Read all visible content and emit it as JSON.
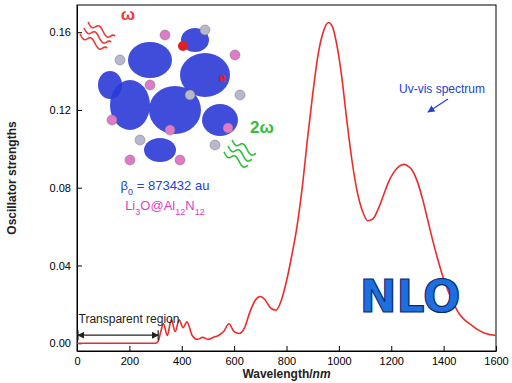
{
  "chart_data": {
    "type": "line",
    "x_label": "Wavelength/nm",
    "y_label": "Oscillator strengths",
    "x": [
      0,
      100,
      200,
      300,
      310,
      320,
      330,
      345,
      360,
      375,
      390,
      405,
      420,
      440,
      460,
      480,
      500,
      520,
      540,
      560,
      580,
      600,
      620,
      640,
      660,
      680,
      700,
      720,
      740,
      760,
      780,
      800,
      820,
      840,
      860,
      880,
      900,
      920,
      940,
      960,
      975,
      990,
      1010,
      1030,
      1050,
      1070,
      1090,
      1110,
      1130,
      1150,
      1170,
      1190,
      1210,
      1230,
      1250,
      1265,
      1280,
      1300,
      1320,
      1340,
      1360,
      1380,
      1400,
      1420,
      1440,
      1460,
      1480,
      1500,
      1530,
      1560,
      1600
    ],
    "values": [
      0,
      0,
      0,
      0,
      0.001,
      0.006,
      0.01,
      0.004,
      0.012,
      0.006,
      0.012,
      0.008,
      0.011,
      0.004,
      0.002,
      0.003,
      0.002,
      0.003,
      0.004,
      0.006,
      0.01,
      0.006,
      0.005,
      0.008,
      0.016,
      0.022,
      0.024,
      0.022,
      0.018,
      0.017,
      0.022,
      0.032,
      0.045,
      0.06,
      0.08,
      0.105,
      0.128,
      0.148,
      0.16,
      0.165,
      0.163,
      0.155,
      0.138,
      0.115,
      0.094,
      0.078,
      0.068,
      0.063,
      0.064,
      0.069,
      0.076,
      0.083,
      0.088,
      0.091,
      0.092,
      0.091,
      0.089,
      0.083,
      0.074,
      0.063,
      0.052,
      0.042,
      0.033,
      0.026,
      0.02,
      0.015,
      0.012,
      0.01,
      0.007,
      0.005,
      0.004
    ],
    "color": "#ec2b2b",
    "xlim": [
      0,
      1600
    ],
    "xticks": [
      0,
      200,
      400,
      600,
      800,
      1000,
      1200,
      1400,
      1600
    ],
    "ylim": [
      -0.004,
      0.174
    ],
    "yticks": [
      {
        "value": 0,
        "label": "0.00"
      },
      {
        "value": 0.04,
        "label": "0.04"
      },
      {
        "value": 0.08,
        "label": "0.08"
      },
      {
        "value": 0.12,
        "label": "0.12"
      },
      {
        "value": 0.16,
        "label": "0.16"
      }
    ],
    "transparent_region": [
      0,
      310
    ],
    "annotations": [
      "Uv-vis spectrum",
      "Transparent region",
      "NLO",
      "β0 = 873432 au",
      "Li3O@Al12N12",
      "ω",
      "2ω",
      "e"
    ]
  }
}
